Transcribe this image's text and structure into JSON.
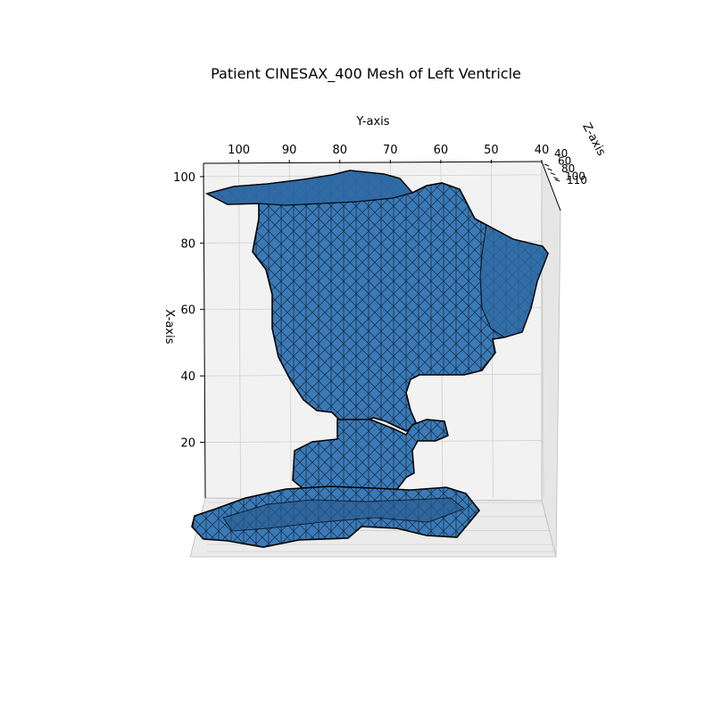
{
  "chart_data": {
    "type": "3d-mesh",
    "title": "Patient CINESAX_400 Mesh of Left Ventricle",
    "xlabel": "X-axis",
    "ylabel": "Y-axis",
    "zlabel": "Z-axis",
    "x_ticks": [
      20,
      40,
      60,
      80,
      100
    ],
    "y_ticks": [
      100,
      90,
      80,
      70,
      60,
      50,
      40
    ],
    "z_ticks": [
      40,
      60,
      80,
      100,
      110
    ],
    "xlim": [
      0,
      104
    ],
    "ylim": [
      40,
      107
    ],
    "grid": true,
    "mesh_color": "#3a7ab8",
    "edge_color": "#000000",
    "pane_color": "#f2f2f2"
  }
}
